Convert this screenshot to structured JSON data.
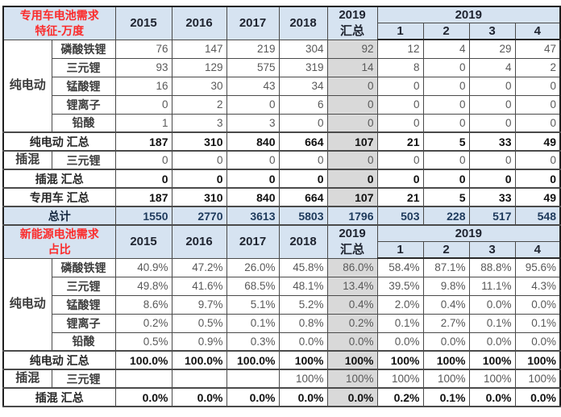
{
  "colors": {
    "header_bg": "#d6e3f1",
    "ytd_column_bg": "#d9d9d9",
    "total_row_bg": "#d6e3f1",
    "section_title_red": "#fb2b2b",
    "border": "#4a4a4a"
  },
  "columns": {
    "years": [
      "2015",
      "2016",
      "2017",
      "2018"
    ],
    "ytd_line1": "2019",
    "ytd_line2": "汇总",
    "year_group": "2019",
    "quarters": [
      "1",
      "2",
      "3",
      "4"
    ]
  },
  "table": {
    "sections": [
      {
        "title": [
          "专用车电池需求",
          "特征-万度"
        ],
        "rows": [
          {
            "group": "纯电动",
            "group_span": 5,
            "label": "磷酸铁锂",
            "values": [
              "76",
              "147",
              "219",
              "304",
              "92",
              "12",
              "4",
              "29",
              "47"
            ]
          },
          {
            "label": "三元锂",
            "values": [
              "93",
              "129",
              "575",
              "319",
              "14",
              "8",
              "0",
              "4",
              "2"
            ]
          },
          {
            "label": "锰酸锂",
            "values": [
              "16",
              "30",
              "43",
              "34",
              "0",
              "0",
              "0",
              "0",
              "0"
            ]
          },
          {
            "label": "锂离子",
            "values": [
              "0",
              "2",
              "0",
              "6",
              "0",
              "0",
              "0",
              "0",
              "0"
            ]
          },
          {
            "label": "铅酸",
            "values": [
              "1",
              "3",
              "3",
              "0",
              "0",
              "0",
              "0",
              "0",
              "0"
            ]
          },
          {
            "summary": true,
            "label": "纯电动 汇总",
            "values": [
              "187",
              "310",
              "840",
              "664",
              "107",
              "21",
              "5",
              "33",
              "49"
            ]
          },
          {
            "group": "插混",
            "group_span": 1,
            "label": "三元锂",
            "values": [
              "0",
              "0",
              "0",
              "0",
              "0",
              "0",
              "0",
              "0",
              "0"
            ]
          },
          {
            "summary": true,
            "label": "插混 汇总",
            "values": [
              "0",
              "0",
              "0",
              "0",
              "0",
              "0",
              "0",
              "0",
              "0"
            ]
          },
          {
            "summary": true,
            "label": "专用车 汇总",
            "values": [
              "187",
              "310",
              "840",
              "664",
              "107",
              "21",
              "5",
              "33",
              "49"
            ]
          },
          {
            "total": true,
            "label": "总计",
            "values": [
              "1550",
              "2770",
              "3613",
              "5803",
              "1796",
              "503",
              "228",
              "517",
              "548"
            ]
          }
        ]
      },
      {
        "title": [
          "新能源电池需求",
          "占比"
        ],
        "rows": [
          {
            "group": "纯电动",
            "group_span": 5,
            "label": "磷酸铁锂",
            "values": [
              "40.9%",
              "47.2%",
              "26.0%",
              "45.8%",
              "86.0%",
              "58.4%",
              "87.1%",
              "88.8%",
              "95.6%"
            ]
          },
          {
            "label": "三元锂",
            "values": [
              "49.8%",
              "41.6%",
              "68.5%",
              "48.1%",
              "13.4%",
              "39.5%",
              "9.8%",
              "11.1%",
              "4.3%"
            ]
          },
          {
            "label": "锰酸锂",
            "values": [
              "8.6%",
              "9.7%",
              "5.1%",
              "5.2%",
              "0.4%",
              "2.0%",
              "0.4%",
              "0.0%",
              "0.0%"
            ]
          },
          {
            "label": "锂离子",
            "values": [
              "0.2%",
              "0.5%",
              "0.1%",
              "0.8%",
              "0.2%",
              "0.1%",
              "2.7%",
              "0.1%",
              "0.1%"
            ]
          },
          {
            "label": "铅酸",
            "values": [
              "0.5%",
              "0.9%",
              "0.3%",
              "0.0%",
              "0.0%",
              "0.0%",
              "0.0%",
              "0.0%",
              "0.0%"
            ]
          },
          {
            "summary": true,
            "label": "纯电动 汇总",
            "values": [
              "100.0%",
              "100.0%",
              "100.0%",
              "100%",
              "100%",
              "100%",
              "100%",
              "100%",
              "100%"
            ]
          },
          {
            "group": "插混",
            "group_span": 1,
            "label": "三元锂",
            "values": [
              "",
              "",
              "",
              "100%",
              "100%",
              "100%",
              "100%",
              "100%",
              "100%"
            ]
          },
          {
            "summary": true,
            "label": "插混 汇总",
            "values": [
              "0.0%",
              "0.0%",
              "0.0%",
              "0.0%",
              "0.0%",
              "0.2%",
              "0.1%",
              "0.0%",
              "0.0%"
            ]
          }
        ]
      }
    ]
  },
  "chart_data": [
    {
      "type": "table",
      "title": "专用车电池需求特征-万度",
      "columns": [
        "2015",
        "2016",
        "2017",
        "2018",
        "2019汇总",
        "2019-1",
        "2019-2",
        "2019-3",
        "2019-4"
      ],
      "rows": [
        {
          "group": "纯电动",
          "label": "磷酸铁锂",
          "values": [
            76,
            147,
            219,
            304,
            92,
            12,
            4,
            29,
            47
          ]
        },
        {
          "group": "纯电动",
          "label": "三元锂",
          "values": [
            93,
            129,
            575,
            319,
            14,
            8,
            0,
            4,
            2
          ]
        },
        {
          "group": "纯电动",
          "label": "锰酸锂",
          "values": [
            16,
            30,
            43,
            34,
            0,
            0,
            0,
            0,
            0
          ]
        },
        {
          "group": "纯电动",
          "label": "锂离子",
          "values": [
            0,
            2,
            0,
            6,
            0,
            0,
            0,
            0,
            0
          ]
        },
        {
          "group": "纯电动",
          "label": "铅酸",
          "values": [
            1,
            3,
            3,
            0,
            0,
            0,
            0,
            0,
            0
          ]
        },
        {
          "label": "纯电动 汇总",
          "values": [
            187,
            310,
            840,
            664,
            107,
            21,
            5,
            33,
            49
          ]
        },
        {
          "group": "插混",
          "label": "三元锂",
          "values": [
            0,
            0,
            0,
            0,
            0,
            0,
            0,
            0,
            0
          ]
        },
        {
          "label": "插混 汇总",
          "values": [
            0,
            0,
            0,
            0,
            0,
            0,
            0,
            0,
            0
          ]
        },
        {
          "label": "专用车 汇总",
          "values": [
            187,
            310,
            840,
            664,
            107,
            21,
            5,
            33,
            49
          ]
        },
        {
          "label": "总计",
          "values": [
            1550,
            2770,
            3613,
            5803,
            1796,
            503,
            228,
            517,
            548
          ]
        }
      ]
    },
    {
      "type": "table",
      "title": "新能源电池需求占比",
      "columns": [
        "2015",
        "2016",
        "2017",
        "2018",
        "2019汇总",
        "2019-1",
        "2019-2",
        "2019-3",
        "2019-4"
      ],
      "unit": "%",
      "rows": [
        {
          "group": "纯电动",
          "label": "磷酸铁锂",
          "values": [
            40.9,
            47.2,
            26.0,
            45.8,
            86.0,
            58.4,
            87.1,
            88.8,
            95.6
          ]
        },
        {
          "group": "纯电动",
          "label": "三元锂",
          "values": [
            49.8,
            41.6,
            68.5,
            48.1,
            13.4,
            39.5,
            9.8,
            11.1,
            4.3
          ]
        },
        {
          "group": "纯电动",
          "label": "锰酸锂",
          "values": [
            8.6,
            9.7,
            5.1,
            5.2,
            0.4,
            2.0,
            0.4,
            0.0,
            0.0
          ]
        },
        {
          "group": "纯电动",
          "label": "锂离子",
          "values": [
            0.2,
            0.5,
            0.1,
            0.8,
            0.2,
            0.1,
            2.7,
            0.1,
            0.1
          ]
        },
        {
          "group": "纯电动",
          "label": "铅酸",
          "values": [
            0.5,
            0.9,
            0.3,
            0.0,
            0.0,
            0.0,
            0.0,
            0.0,
            0.0
          ]
        },
        {
          "label": "纯电动 汇总",
          "values": [
            100.0,
            100.0,
            100.0,
            100,
            100,
            100,
            100,
            100,
            100
          ]
        },
        {
          "group": "插混",
          "label": "三元锂",
          "values": [
            null,
            null,
            null,
            100,
            100,
            100,
            100,
            100,
            100
          ]
        },
        {
          "label": "插混 汇总",
          "values": [
            0.0,
            0.0,
            0.0,
            0.0,
            0.0,
            0.2,
            0.1,
            0.0,
            0.0
          ]
        }
      ]
    }
  ]
}
